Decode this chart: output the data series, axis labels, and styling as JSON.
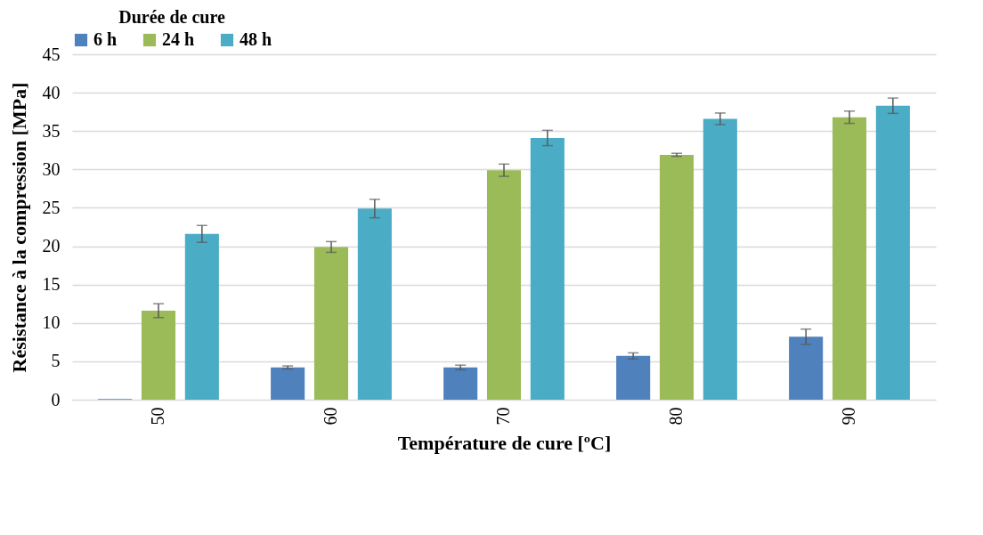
{
  "chart_data": {
    "type": "bar",
    "legend_title": "Durée de cure",
    "xlabel": "Température de cure [ºC]",
    "ylabel": "Résistance à la compression [MPa]",
    "categories": [
      "50",
      "60",
      "70",
      "80",
      "90"
    ],
    "series": [
      {
        "name": "6 h",
        "color": "#4f81bd",
        "values": [
          0.1,
          4.2,
          4.2,
          5.7,
          8.2
        ],
        "errors": [
          null,
          0.2,
          0.3,
          0.4,
          1.0
        ]
      },
      {
        "name": "24 h",
        "color": "#9bbb59",
        "values": [
          11.6,
          19.9,
          29.9,
          31.9,
          36.8
        ],
        "errors": [
          0.9,
          0.7,
          0.8,
          0.2,
          0.8
        ]
      },
      {
        "name": "48 h",
        "color": "#4bacc6",
        "values": [
          21.6,
          24.9,
          34.1,
          36.6,
          38.3
        ],
        "errors": [
          1.1,
          1.2,
          1.0,
          0.75,
          1.0
        ]
      }
    ],
    "ylim": [
      0,
      45
    ],
    "yticks": [
      0,
      5,
      10,
      15,
      20,
      25,
      30,
      35,
      40,
      45
    ],
    "grid": "y",
    "legend": "top"
  }
}
